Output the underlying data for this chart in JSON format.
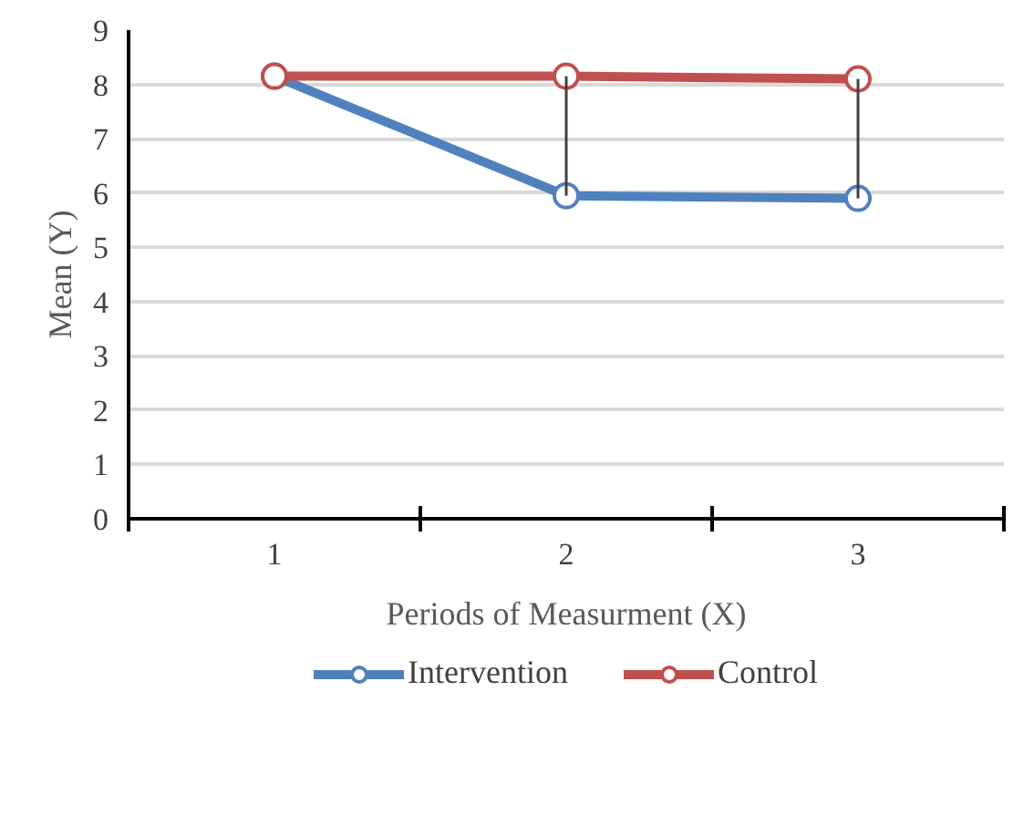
{
  "chart_data": {
    "type": "line",
    "xlabel": "Periods of Measurment (X)",
    "ylabel": "Mean (Y)",
    "categories": [
      "1",
      "2",
      "3"
    ],
    "series": [
      {
        "name": "Intervention",
        "color": "#4f81bd",
        "values": [
          8.15,
          5.95,
          5.9
        ]
      },
      {
        "name": "Control",
        "color": "#c0504d",
        "values": [
          8.15,
          8.15,
          8.1
        ],
        "errors": [
          null,
          [
            5.95,
            8.15
          ],
          [
            5.9,
            8.1
          ]
        ]
      }
    ],
    "ylim": [
      0,
      9
    ],
    "yticks": [
      0,
      1,
      2,
      3,
      4,
      5,
      6,
      7,
      8,
      9
    ],
    "grid": "y",
    "legend": "bottom",
    "marker": "circle",
    "line_style": "solid"
  }
}
